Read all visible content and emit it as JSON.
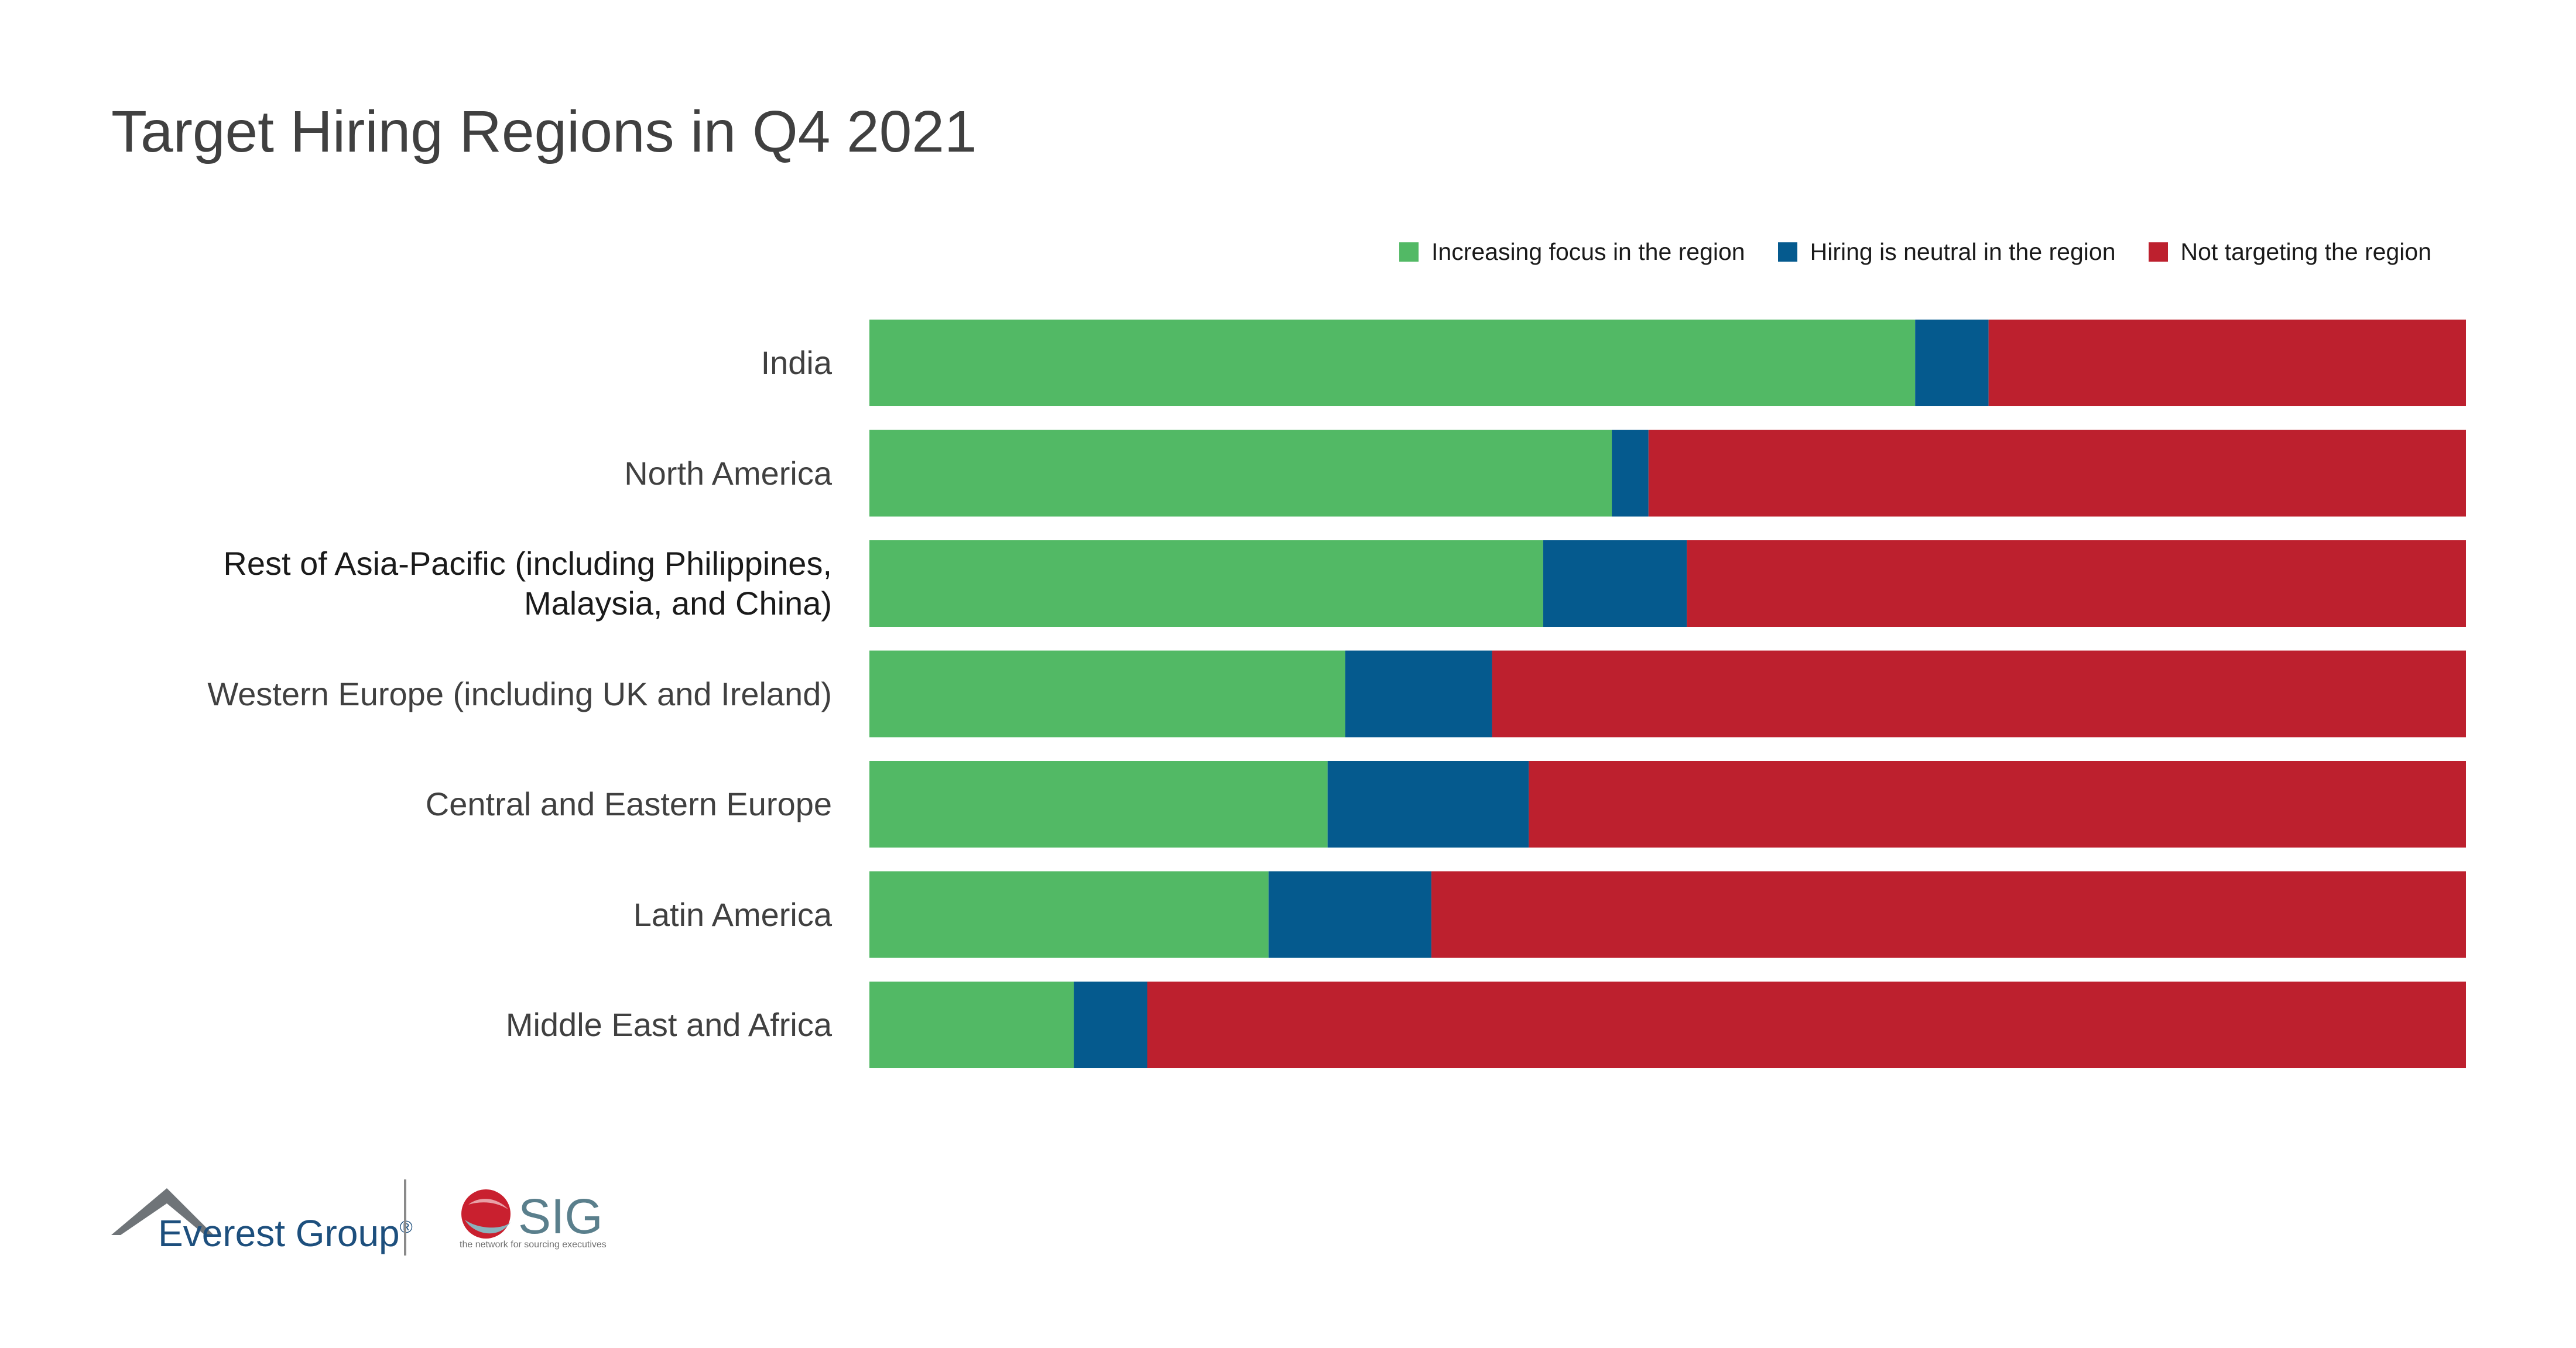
{
  "title": "Target Hiring Regions in Q4 2021",
  "colors": {
    "increasing": "#52b965",
    "neutral": "#055a8e",
    "not_targeting": "#bd202e"
  },
  "chart_data": {
    "type": "bar",
    "orientation": "horizontal",
    "stacked": true,
    "categories": [
      "India",
      "North America",
      "Rest of Asia-Pacific (including Philippines, Malaysia, and China)",
      "Western Europe (including UK and Ireland)",
      "Central and Eastern Europe",
      "Latin America",
      "Middle East and Africa"
    ],
    "category_lines": [
      [
        "India"
      ],
      [
        "North America"
      ],
      [
        "Rest of Asia-Pacific (including Philippines,",
        "Malaysia, and China)"
      ],
      [
        "Western Europe (including UK and Ireland)"
      ],
      [
        "Central and Eastern Europe"
      ],
      [
        "Latin America"
      ],
      [
        "Middle East and Africa"
      ]
    ],
    "series": [
      {
        "name": "Increasing focus in the region",
        "color": "#52b965",
        "values": [
          65.5,
          46.5,
          42.2,
          29.8,
          28.7,
          25.0,
          12.8
        ]
      },
      {
        "name": "Hiring is neutral in the region",
        "color": "#055a8e",
        "values": [
          4.6,
          2.3,
          9.0,
          9.2,
          12.6,
          10.2,
          4.6
        ]
      },
      {
        "name": "Not targeting the region",
        "color": "#bd202e",
        "values": [
          29.9,
          51.2,
          48.8,
          61.0,
          58.7,
          64.8,
          82.6
        ]
      }
    ],
    "xlim": [
      0,
      100
    ],
    "grid": false,
    "axes_visible": false,
    "legend": "top-right"
  },
  "footer": {
    "everest_logo_text": "Everest Group",
    "everest_logo_mark": "®",
    "sig_logo_text": "SIG",
    "sig_tagline": "the network for sourcing executives"
  }
}
